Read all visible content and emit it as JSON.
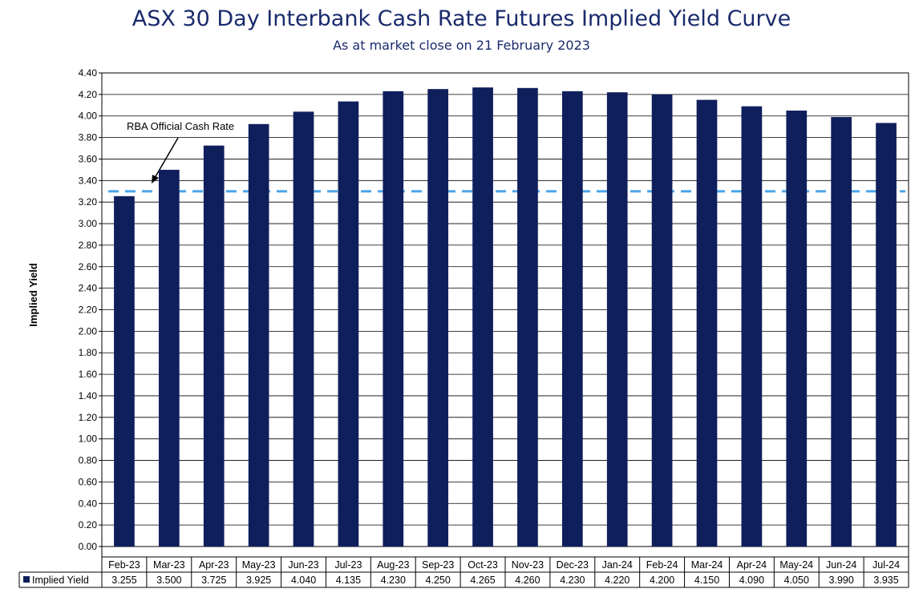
{
  "chart_data": {
    "type": "bar",
    "title": "ASX 30 Day Interbank Cash Rate Futures Implied Yield Curve",
    "subtitle": "As at market close on 21 February 2023",
    "ylabel": "Implied Yield",
    "xlabel": "",
    "ylim": [
      0,
      4.4
    ],
    "yticks": [
      "0.00",
      "0.20",
      "0.40",
      "0.60",
      "0.80",
      "1.00",
      "1.20",
      "1.40",
      "1.60",
      "1.80",
      "2.00",
      "2.20",
      "2.40",
      "2.60",
      "2.80",
      "3.00",
      "3.20",
      "3.40",
      "3.60",
      "3.80",
      "4.00",
      "4.20",
      "4.40"
    ],
    "grid": true,
    "categories": [
      "Feb-23",
      "Mar-23",
      "Apr-23",
      "May-23",
      "Jun-23",
      "Jul-23",
      "Aug-23",
      "Sep-23",
      "Oct-23",
      "Nov-23",
      "Dec-23",
      "Jan-24",
      "Feb-24",
      "Mar-24",
      "Apr-24",
      "May-24",
      "Jun-24",
      "Jul-24"
    ],
    "series": [
      {
        "name": "Implied Yield",
        "color": "#0f1f5c",
        "values": [
          3.255,
          3.5,
          3.725,
          3.925,
          4.04,
          4.135,
          4.23,
          4.25,
          4.265,
          4.26,
          4.23,
          4.22,
          4.2,
          4.15,
          4.09,
          4.05,
          3.99,
          3.935
        ],
        "labels": [
          "3.255",
          "3.500",
          "3.725",
          "3.925",
          "4.040",
          "4.135",
          "4.230",
          "4.250",
          "4.265",
          "4.260",
          "4.230",
          "4.220",
          "4.200",
          "4.150",
          "4.090",
          "4.050",
          "3.990",
          "3.935"
        ]
      }
    ],
    "reference_line": {
      "label": "RBA Official Cash Rate",
      "value": 3.3,
      "color": "#4da6e8",
      "style": "dashed"
    },
    "data_table": true
  }
}
